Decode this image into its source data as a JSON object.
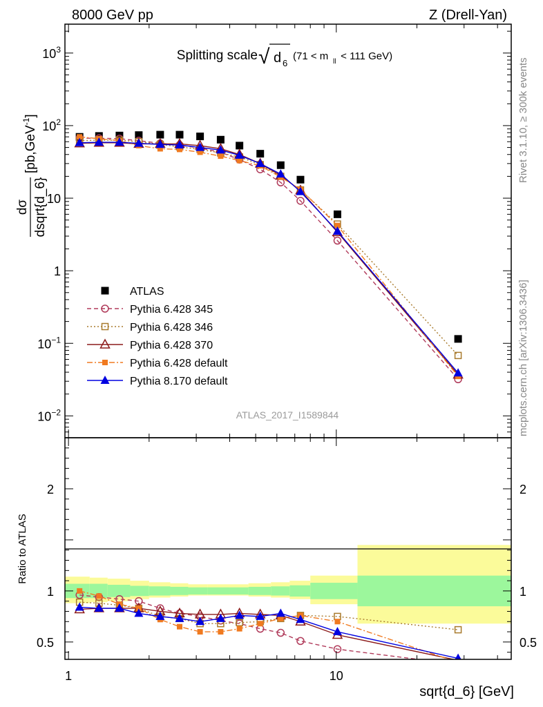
{
  "header": {
    "left": "8000 GeV pp",
    "right": "Z (Drell-Yan)"
  },
  "side_labels": {
    "rivet": "Rivet 3.1.10, ≥ 300k events",
    "mcplots": "mcplots.cern.ch [arXiv:1306.3436]"
  },
  "plot_title": {
    "main": "Splitting scale",
    "root_symbol": "√",
    "var": "d",
    "var_sub": "6",
    "cut": "(71 < m",
    "cut_sub": "ll",
    "cut_end": " < 111 GeV)"
  },
  "analysis_id": "ATLAS_2017_I1589844",
  "y_axis_label": {
    "num": "dσ",
    "den": "dsqrt{d_6}",
    "units_a": "[pb,GeV",
    "units_sup": "-1",
    "units_b": "]"
  },
  "x_axis_label": "sqrt{d_6} [GeV]",
  "ratio_axis_label": "Ratio to ATLAS",
  "colors": {
    "atlas": "#000000",
    "p345": "#b03a5a",
    "p346": "#a87a2c",
    "p370": "#8b1a1a",
    "p6def": "#f07a20",
    "p8def": "#0000e0",
    "band_inner": "#9cf79c",
    "band_outer": "#fbfb9a"
  },
  "chart_data": [
    {
      "type": "line",
      "panel": "main",
      "x_scale": "log",
      "y_scale": "log",
      "xlim": [
        0.97,
        45
      ],
      "ylim": [
        0.005,
        2500
      ],
      "xlabel": "sqrt{d_6} [GeV]",
      "ylabel": "dσ/dsqrt{d_6} [pb,GeV^-1]",
      "x": [
        1.1,
        1.3,
        1.55,
        1.83,
        2.2,
        2.6,
        3.1,
        3.7,
        4.35,
        5.2,
        6.2,
        7.35,
        10.1,
        28.5
      ],
      "x_ticks": [
        {
          "v": 1,
          "label": "1"
        },
        {
          "v": 10,
          "label": "10"
        }
      ],
      "y_ticks": [
        {
          "v": 0.01,
          "label": "10",
          "sup": "−2"
        },
        {
          "v": 0.1,
          "label": "10",
          "sup": "−1"
        },
        {
          "v": 1,
          "label": "1",
          "sup": ""
        },
        {
          "v": 10,
          "label": "10",
          "sup": ""
        },
        {
          "v": 100,
          "label": "10",
          "sup": "2"
        },
        {
          "v": 1000,
          "label": "10",
          "sup": "3"
        }
      ],
      "legend_position": "middle-left",
      "series": [
        {
          "key": "atlas",
          "name": "ATLAS",
          "marker": "square",
          "style": "none",
          "values": [
            70,
            72,
            73,
            74,
            75,
            75,
            71,
            64,
            53,
            41,
            28.5,
            18,
            6.0,
            0.115
          ]
        },
        {
          "key": "p345",
          "name": "Pythia 6.428 345",
          "marker": "circle-open",
          "style": "dashed",
          "values": [
            67,
            67,
            66,
            62,
            57,
            54,
            49,
            43,
            34,
            25,
            16.5,
            9.2,
            2.6,
            0.032
          ]
        },
        {
          "key": "p346",
          "name": "Pythia 6.428 346",
          "marker": "square-open",
          "style": "dotted",
          "values": [
            62,
            63,
            63,
            60,
            55,
            51,
            47,
            42,
            37,
            29,
            20,
            13,
            4.4,
            0.068
          ]
        },
        {
          "key": "p370",
          "name": "Pythia 6.428 370",
          "marker": "triangle-open",
          "style": "solid",
          "values": [
            57,
            58,
            58,
            56,
            56,
            56,
            53,
            48,
            40,
            30,
            20.5,
            12.8,
            3.4,
            0.037
          ]
        },
        {
          "key": "p6def",
          "name": "Pythia 6.428 default",
          "marker": "square-small",
          "style": "dashdot",
          "values": [
            70,
            66,
            62,
            53,
            48,
            47,
            43,
            38,
            33,
            28,
            19.5,
            13.2,
            4.2,
            0.035
          ]
        },
        {
          "key": "p8def",
          "name": "Pythia 8.170 default",
          "marker": "triangle",
          "style": "solid",
          "values": [
            58,
            59,
            59,
            57,
            55,
            54,
            50,
            46,
            39,
            30,
            21.5,
            12.3,
            3.5,
            0.039
          ]
        }
      ]
    },
    {
      "type": "line",
      "panel": "ratio",
      "x_scale": "log",
      "xlim": [
        0.97,
        45
      ],
      "ylim": [
        0.33,
        2.5
      ],
      "ylabel": "Ratio to ATLAS",
      "y_ticks": [
        {
          "v": 0.5,
          "label": "0.5"
        },
        {
          "v": 1,
          "label": "1"
        },
        {
          "v": 2,
          "label": "2"
        }
      ],
      "x": [
        1.1,
        1.3,
        1.55,
        1.83,
        2.2,
        2.6,
        3.1,
        3.7,
        4.35,
        5.2,
        6.2,
        7.35,
        10.1,
        28.5
      ],
      "bands": {
        "edges": [
          0.97,
          1.2,
          1.4,
          1.7,
          2.0,
          2.4,
          2.8,
          3.3,
          4.0,
          4.7,
          5.7,
          6.7,
          8.0,
          12.0,
          45
        ],
        "inner_lo": [
          0.93,
          0.93,
          0.94,
          0.95,
          0.955,
          0.96,
          0.965,
          0.965,
          0.965,
          0.96,
          0.955,
          0.945,
          0.92,
          0.85
        ],
        "inner_hi": [
          1.07,
          1.07,
          1.06,
          1.05,
          1.045,
          1.04,
          1.035,
          1.035,
          1.035,
          1.04,
          1.045,
          1.055,
          1.08,
          1.15
        ],
        "outer_lo": [
          0.88,
          0.89,
          0.9,
          0.92,
          0.935,
          0.945,
          0.955,
          0.955,
          0.955,
          0.945,
          0.935,
          0.92,
          0.87,
          0.68
        ],
        "outer_hi": [
          1.14,
          1.13,
          1.12,
          1.1,
          1.085,
          1.075,
          1.065,
          1.065,
          1.065,
          1.075,
          1.085,
          1.1,
          1.15,
          1.45
        ]
      },
      "series": [
        {
          "key": "p345",
          "values": [
            0.96,
            0.94,
            0.92,
            0.9,
            0.83,
            0.78,
            0.75,
            0.71,
            0.68,
            0.63,
            0.59,
            0.51,
            0.43,
            0.28
          ]
        },
        {
          "key": "p346",
          "values": [
            0.89,
            0.88,
            0.86,
            0.83,
            0.75,
            0.73,
            0.68,
            0.68,
            0.69,
            0.7,
            0.73,
            0.76,
            0.75,
            0.62
          ]
        },
        {
          "key": "p370",
          "values": [
            0.82,
            0.83,
            0.83,
            0.83,
            0.8,
            0.78,
            0.77,
            0.77,
            0.78,
            0.77,
            0.76,
            0.7,
            0.57,
            0.32
          ]
        },
        {
          "key": "p6def",
          "values": [
            1.0,
            0.95,
            0.87,
            0.83,
            0.72,
            0.65,
            0.6,
            0.6,
            0.63,
            0.68,
            0.73,
            0.76,
            0.7,
            0.3
          ]
        },
        {
          "key": "p8def",
          "values": [
            0.84,
            0.83,
            0.83,
            0.78,
            0.75,
            0.73,
            0.7,
            0.73,
            0.76,
            0.75,
            0.78,
            0.72,
            0.6,
            0.34
          ]
        }
      ]
    }
  ]
}
